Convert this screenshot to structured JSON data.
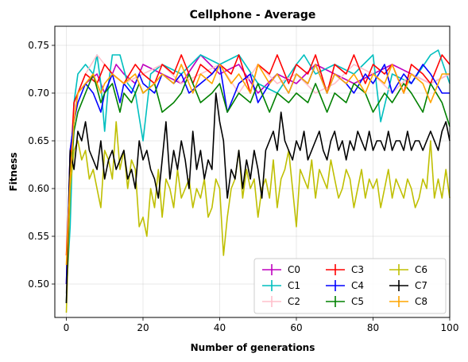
{
  "chart_data": {
    "type": "line",
    "title": "Cellphone - Average",
    "xlabel": "Number of generations",
    "ylabel": "Fitness",
    "xlim": [
      -3,
      100
    ],
    "ylim": [
      0.465,
      0.77
    ],
    "xticks": [
      "0",
      "20",
      "40",
      "60",
      "80",
      "100"
    ],
    "yticks": [
      "0.50",
      "0.55",
      "0.60",
      "0.65",
      "0.70",
      "0.75"
    ],
    "grid": true,
    "legend_position": "lower right",
    "legend_columns": 3,
    "series": [
      {
        "name": "C0",
        "color": "#bf00bf",
        "x": [
          0,
          1,
          2,
          3,
          5,
          8,
          10,
          13,
          15,
          18,
          20,
          25,
          30,
          35,
          40,
          45,
          50,
          55,
          60,
          65,
          70,
          75,
          80,
          85,
          90,
          95,
          100
        ],
        "y": [
          0.5,
          0.64,
          0.67,
          0.7,
          0.71,
          0.72,
          0.7,
          0.73,
          0.72,
          0.71,
          0.73,
          0.72,
          0.71,
          0.74,
          0.72,
          0.73,
          0.7,
          0.72,
          0.71,
          0.73,
          0.72,
          0.71,
          0.72,
          0.73,
          0.72,
          0.71,
          0.72
        ]
      },
      {
        "name": "C1",
        "color": "#00bfbf",
        "x": [
          0,
          1,
          2,
          3,
          5,
          7,
          8,
          9,
          10,
          11,
          12,
          14,
          16,
          18,
          20,
          22,
          25,
          30,
          35,
          40,
          45,
          50,
          55,
          60,
          62,
          65,
          70,
          75,
          80,
          82,
          85,
          90,
          95,
          97,
          100
        ],
        "y": [
          0.49,
          0.56,
          0.69,
          0.72,
          0.73,
          0.72,
          0.74,
          0.71,
          0.66,
          0.71,
          0.74,
          0.74,
          0.71,
          0.7,
          0.65,
          0.72,
          0.73,
          0.72,
          0.74,
          0.73,
          0.74,
          0.71,
          0.7,
          0.73,
          0.74,
          0.72,
          0.73,
          0.72,
          0.74,
          0.67,
          0.72,
          0.71,
          0.74,
          0.745,
          0.71
        ]
      },
      {
        "name": "C2",
        "color": "#ffc0cb",
        "x": [
          0,
          1,
          2,
          3,
          5,
          8,
          10,
          12,
          15,
          20,
          25,
          30,
          35,
          40,
          45,
          50,
          55,
          60,
          65,
          70,
          75,
          80,
          85,
          90,
          95,
          100
        ],
        "y": [
          0.49,
          0.62,
          0.68,
          0.7,
          0.72,
          0.74,
          0.73,
          0.72,
          0.71,
          0.72,
          0.73,
          0.71,
          0.72,
          0.73,
          0.7,
          0.73,
          0.71,
          0.72,
          0.7,
          0.71,
          0.73,
          0.72,
          0.7,
          0.72,
          0.71,
          0.72
        ]
      },
      {
        "name": "C3",
        "color": "#ff0000",
        "x": [
          0,
          1,
          2,
          3,
          5,
          8,
          10,
          12,
          15,
          18,
          20,
          23,
          25,
          28,
          30,
          33,
          35,
          38,
          40,
          43,
          45,
          48,
          50,
          53,
          55,
          58,
          60,
          63,
          65,
          68,
          70,
          73,
          75,
          78,
          80,
          83,
          85,
          88,
          90,
          93,
          95,
          98,
          100
        ],
        "y": [
          0.53,
          0.62,
          0.69,
          0.7,
          0.72,
          0.71,
          0.73,
          0.72,
          0.71,
          0.73,
          0.72,
          0.71,
          0.73,
          0.72,
          0.74,
          0.71,
          0.73,
          0.72,
          0.73,
          0.72,
          0.74,
          0.7,
          0.73,
          0.72,
          0.74,
          0.71,
          0.73,
          0.72,
          0.74,
          0.7,
          0.73,
          0.72,
          0.74,
          0.71,
          0.73,
          0.72,
          0.73,
          0.7,
          0.73,
          0.72,
          0.71,
          0.74,
          0.73
        ]
      },
      {
        "name": "C4",
        "color": "#0000ff",
        "x": [
          0,
          1,
          2,
          3,
          5,
          7,
          9,
          10,
          12,
          14,
          15,
          17,
          19,
          20,
          23,
          25,
          28,
          30,
          32,
          35,
          38,
          40,
          42,
          45,
          48,
          50,
          53,
          55,
          58,
          60,
          63,
          65,
          68,
          70,
          73,
          75,
          78,
          80,
          83,
          85,
          88,
          90,
          93,
          95,
          98,
          100
        ],
        "y": [
          0.5,
          0.64,
          0.67,
          0.69,
          0.71,
          0.7,
          0.68,
          0.7,
          0.72,
          0.69,
          0.71,
          0.7,
          0.72,
          0.71,
          0.7,
          0.72,
          0.71,
          0.72,
          0.7,
          0.71,
          0.72,
          0.73,
          0.68,
          0.71,
          0.72,
          0.69,
          0.71,
          0.72,
          0.7,
          0.72,
          0.71,
          0.73,
          0.7,
          0.72,
          0.71,
          0.7,
          0.72,
          0.71,
          0.73,
          0.7,
          0.72,
          0.71,
          0.73,
          0.72,
          0.7,
          0.7
        ]
      },
      {
        "name": "C5",
        "color": "#008000",
        "x": [
          0,
          1,
          2,
          3,
          5,
          7,
          9,
          10,
          12,
          14,
          15,
          17,
          19,
          20,
          23,
          25,
          28,
          30,
          32,
          35,
          38,
          40,
          42,
          45,
          48,
          50,
          53,
          55,
          58,
          60,
          63,
          65,
          68,
          70,
          73,
          75,
          78,
          80,
          83,
          85,
          88,
          90,
          93,
          95,
          98,
          100
        ],
        "y": [
          0.48,
          0.6,
          0.66,
          0.68,
          0.7,
          0.72,
          0.69,
          0.7,
          0.71,
          0.68,
          0.7,
          0.69,
          0.71,
          0.7,
          0.71,
          0.68,
          0.69,
          0.7,
          0.72,
          0.69,
          0.7,
          0.71,
          0.68,
          0.7,
          0.69,
          0.71,
          0.68,
          0.7,
          0.69,
          0.7,
          0.69,
          0.71,
          0.68,
          0.7,
          0.69,
          0.71,
          0.7,
          0.68,
          0.7,
          0.69,
          0.71,
          0.7,
          0.68,
          0.71,
          0.69,
          0.665
        ]
      },
      {
        "name": "C6",
        "color": "#bfbf00",
        "x": [
          0,
          1,
          2,
          3,
          4,
          5,
          6,
          7,
          8,
          9,
          10,
          11,
          12,
          13,
          14,
          15,
          16,
          17,
          18,
          19,
          20,
          21,
          22,
          23,
          24,
          25,
          26,
          27,
          28,
          29,
          30,
          31,
          32,
          33,
          34,
          35,
          36,
          37,
          38,
          39,
          40,
          41,
          42,
          43,
          44,
          45,
          46,
          47,
          48,
          49,
          50,
          51,
          52,
          53,
          54,
          55,
          56,
          57,
          58,
          59,
          60,
          61,
          62,
          63,
          64,
          65,
          66,
          67,
          68,
          69,
          70,
          71,
          72,
          73,
          74,
          75,
          76,
          77,
          78,
          79,
          80,
          81,
          82,
          83,
          84,
          85,
          86,
          87,
          88,
          89,
          90,
          91,
          92,
          93,
          94,
          95,
          96,
          97,
          98,
          99,
          100
        ],
        "y": [
          0.47,
          0.6,
          0.64,
          0.65,
          0.63,
          0.64,
          0.61,
          0.62,
          0.6,
          0.58,
          0.64,
          0.63,
          0.61,
          0.67,
          0.62,
          0.64,
          0.6,
          0.63,
          0.62,
          0.56,
          0.57,
          0.55,
          0.6,
          0.58,
          0.62,
          0.57,
          0.61,
          0.6,
          0.58,
          0.62,
          0.59,
          0.6,
          0.61,
          0.58,
          0.6,
          0.59,
          0.61,
          0.57,
          0.58,
          0.61,
          0.6,
          0.53,
          0.57,
          0.6,
          0.61,
          0.64,
          0.59,
          0.62,
          0.6,
          0.61,
          0.57,
          0.6,
          0.61,
          0.59,
          0.63,
          0.58,
          0.61,
          0.62,
          0.64,
          0.6,
          0.56,
          0.62,
          0.61,
          0.6,
          0.63,
          0.59,
          0.62,
          0.61,
          0.6,
          0.63,
          0.61,
          0.59,
          0.6,
          0.62,
          0.61,
          0.58,
          0.6,
          0.62,
          0.59,
          0.61,
          0.6,
          0.61,
          0.58,
          0.6,
          0.62,
          0.59,
          0.61,
          0.6,
          0.59,
          0.61,
          0.6,
          0.58,
          0.59,
          0.61,
          0.6,
          0.65,
          0.59,
          0.61,
          0.59,
          0.62,
          0.59
        ]
      },
      {
        "name": "C7",
        "color": "#000000",
        "x": [
          0,
          1,
          2,
          3,
          4,
          5,
          6,
          7,
          8,
          9,
          10,
          11,
          12,
          13,
          14,
          15,
          16,
          17,
          18,
          19,
          20,
          21,
          22,
          23,
          24,
          25,
          26,
          27,
          28,
          29,
          30,
          31,
          32,
          33,
          34,
          35,
          36,
          37,
          38,
          39,
          40,
          41,
          42,
          43,
          44,
          45,
          46,
          47,
          48,
          49,
          50,
          51,
          52,
          53,
          54,
          55,
          56,
          57,
          58,
          59,
          60,
          61,
          62,
          63,
          64,
          65,
          66,
          67,
          68,
          69,
          70,
          71,
          72,
          73,
          74,
          75,
          76,
          77,
          78,
          79,
          80,
          81,
          82,
          83,
          84,
          85,
          86,
          87,
          88,
          89,
          90,
          91,
          92,
          93,
          94,
          95,
          96,
          97,
          98,
          99,
          100
        ],
        "y": [
          0.48,
          0.64,
          0.62,
          0.66,
          0.65,
          0.67,
          0.64,
          0.63,
          0.62,
          0.65,
          0.61,
          0.63,
          0.64,
          0.62,
          0.63,
          0.64,
          0.61,
          0.62,
          0.6,
          0.65,
          0.63,
          0.64,
          0.62,
          0.61,
          0.59,
          0.63,
          0.67,
          0.61,
          0.64,
          0.62,
          0.65,
          0.63,
          0.6,
          0.66,
          0.62,
          0.64,
          0.61,
          0.63,
          0.62,
          0.7,
          0.67,
          0.65,
          0.59,
          0.62,
          0.61,
          0.64,
          0.6,
          0.63,
          0.61,
          0.64,
          0.62,
          0.59,
          0.64,
          0.65,
          0.66,
          0.64,
          0.68,
          0.65,
          0.64,
          0.63,
          0.65,
          0.64,
          0.66,
          0.63,
          0.64,
          0.65,
          0.66,
          0.64,
          0.63,
          0.65,
          0.66,
          0.64,
          0.65,
          0.63,
          0.65,
          0.64,
          0.66,
          0.65,
          0.64,
          0.66,
          0.64,
          0.65,
          0.65,
          0.64,
          0.66,
          0.64,
          0.65,
          0.65,
          0.64,
          0.66,
          0.64,
          0.65,
          0.65,
          0.64,
          0.65,
          0.66,
          0.65,
          0.64,
          0.66,
          0.67,
          0.65
        ]
      },
      {
        "name": "C8",
        "color": "#ffa500",
        "x": [
          0,
          1,
          2,
          3,
          5,
          7,
          9,
          10,
          12,
          15,
          18,
          20,
          23,
          25,
          28,
          30,
          33,
          35,
          38,
          40,
          43,
          45,
          48,
          50,
          53,
          55,
          58,
          60,
          63,
          65,
          68,
          70,
          73,
          75,
          78,
          80,
          83,
          85,
          88,
          90,
          93,
          95,
          98,
          100
        ],
        "y": [
          0.52,
          0.61,
          0.67,
          0.7,
          0.71,
          0.72,
          0.7,
          0.71,
          0.72,
          0.71,
          0.72,
          0.7,
          0.71,
          0.72,
          0.71,
          0.73,
          0.7,
          0.72,
          0.71,
          0.73,
          0.71,
          0.72,
          0.7,
          0.73,
          0.71,
          0.72,
          0.7,
          0.72,
          0.71,
          0.73,
          0.7,
          0.72,
          0.71,
          0.72,
          0.7,
          0.72,
          0.71,
          0.73,
          0.7,
          0.72,
          0.71,
          0.69,
          0.72,
          0.72
        ]
      }
    ]
  }
}
